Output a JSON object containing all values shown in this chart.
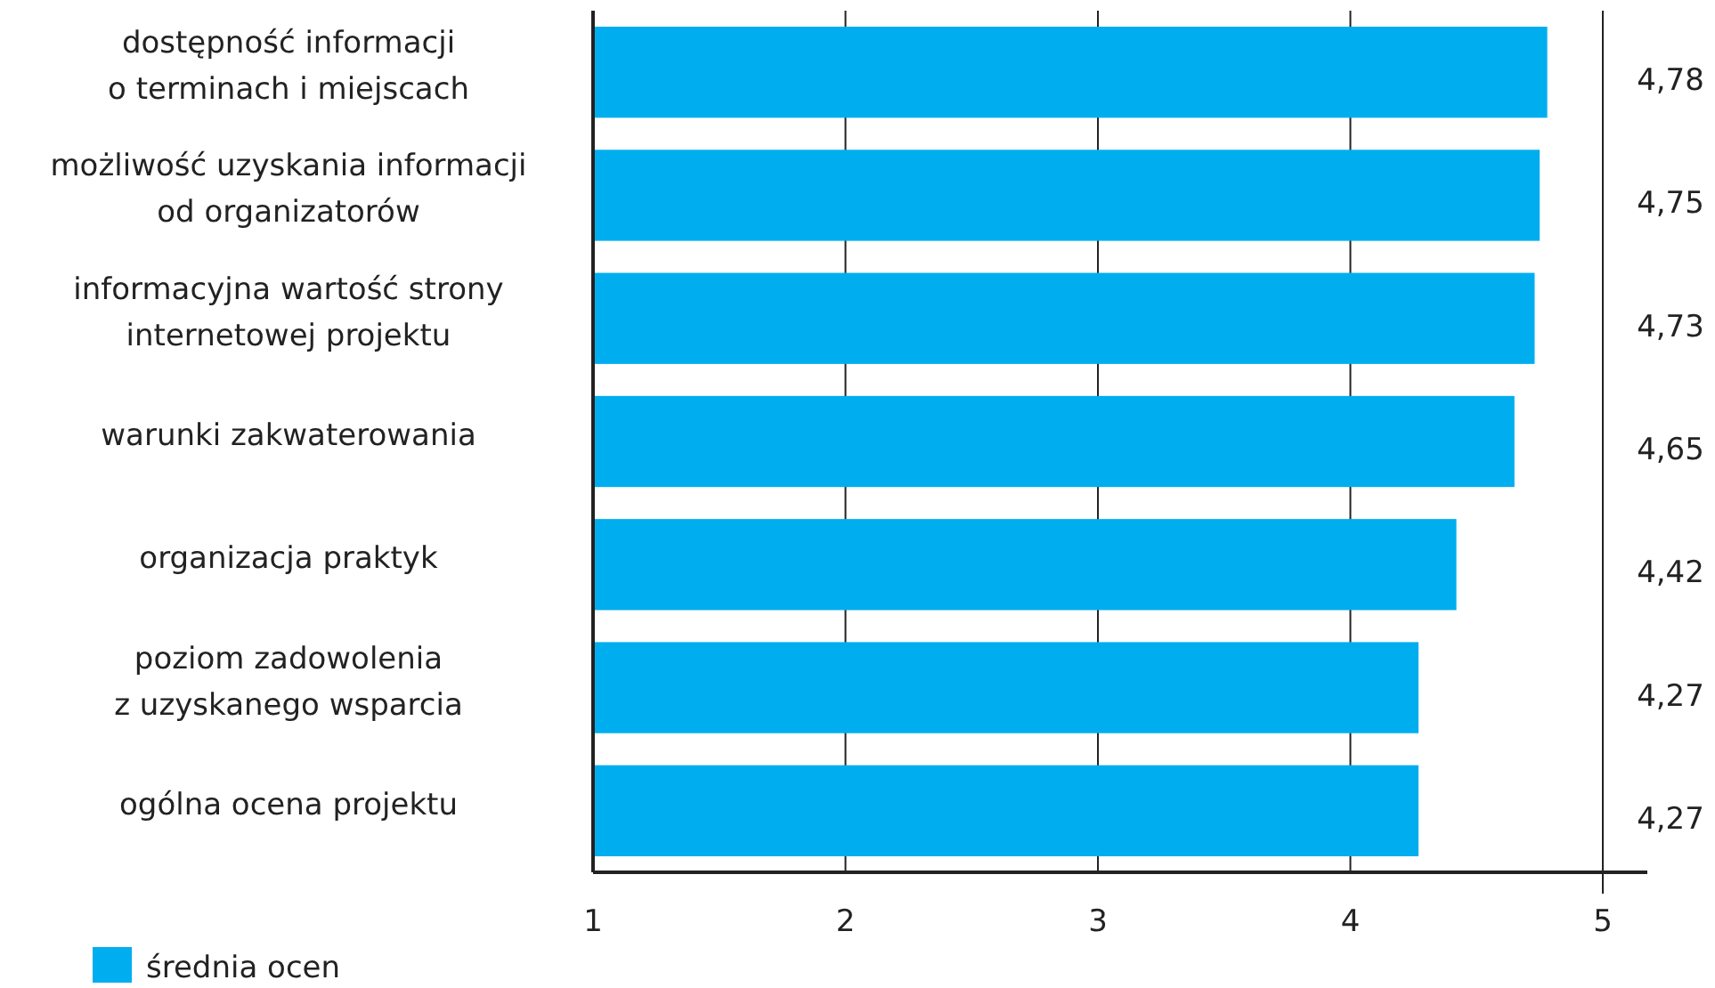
{
  "chart_data": {
    "type": "bar",
    "orientation": "horizontal",
    "categories": [
      "dostępność informacji\no terminach i miejscach",
      "możliwość uzyskania informacji\nod organizatorów",
      "informacyjna wartość strony\ninternetowej projektu",
      "warunki zakwaterowania",
      "organizacja praktyk",
      "poziom zadowolenia\nz uzyskanego wsparcia",
      "ogólna ocena projektu"
    ],
    "series": [
      {
        "name": "średnia ocen",
        "color": "#00aeef",
        "values": [
          4.78,
          4.75,
          4.73,
          4.65,
          4.42,
          4.27,
          4.27
        ],
        "value_labels": [
          "4,78",
          "4,75",
          "4,73",
          "4,65",
          "4,42",
          "4,27",
          "4,27"
        ]
      }
    ],
    "xlim": [
      1,
      5
    ],
    "xticks": [
      1,
      2,
      3,
      4,
      5
    ],
    "grid": "x",
    "legend": "bottom left"
  }
}
